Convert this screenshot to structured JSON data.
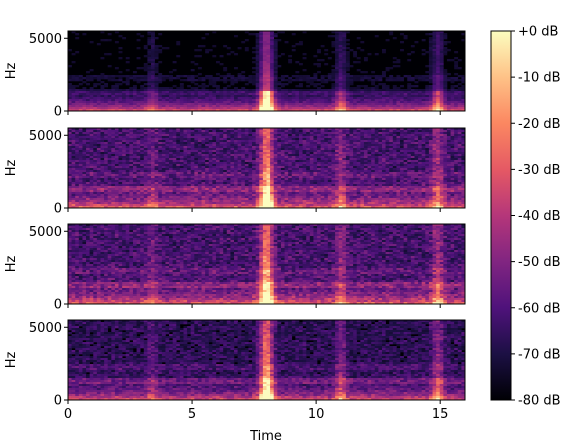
{
  "chart_data": {
    "type": "heatmap",
    "subplots": [
      {
        "ylabel": "Hz",
        "yticks": [
          "5000",
          "0"
        ],
        "ylim": [
          0,
          5500
        ],
        "xlim": [
          0,
          16
        ],
        "profile": "clean"
      },
      {
        "ylabel": "Hz",
        "yticks": [
          "5000",
          "0"
        ],
        "ylim": [
          0,
          5500
        ],
        "xlim": [
          0,
          16
        ],
        "profile": "noisy"
      },
      {
        "ylabel": "Hz",
        "yticks": [
          "5000",
          "0"
        ],
        "ylim": [
          0,
          5500
        ],
        "xlim": [
          0,
          16
        ],
        "profile": "noisy"
      },
      {
        "ylabel": "Hz",
        "yticks": [
          "5000",
          "0"
        ],
        "ylim": [
          0,
          5500
        ],
        "xlim": [
          0,
          16
        ],
        "profile": "medium"
      }
    ],
    "xlabel": "Time",
    "xticks": [
      "0",
      "5",
      "10",
      "15"
    ],
    "xtick_values": [
      0,
      5,
      10,
      15
    ],
    "colorbar": {
      "labels": [
        "+0 dB",
        "-10 dB",
        "-20 dB",
        "-30 dB",
        "-40 dB",
        "-50 dB",
        "-60 dB",
        "-70 dB",
        "-80 dB"
      ],
      "range_db": [
        -80,
        0
      ],
      "colormap": "magma"
    },
    "events": [
      {
        "time": 8.0,
        "strength": 1.0
      },
      {
        "time": 11.0,
        "strength": 0.35
      },
      {
        "time": 14.9,
        "strength": 0.45
      },
      {
        "time": 3.4,
        "strength": 0.2
      }
    ]
  },
  "colors": {
    "colormap_stops": [
      "#000004",
      "#1c1044",
      "#4f127b",
      "#812581",
      "#b5367a",
      "#e55964",
      "#fb8761",
      "#fec287",
      "#fcfdbf"
    ]
  }
}
